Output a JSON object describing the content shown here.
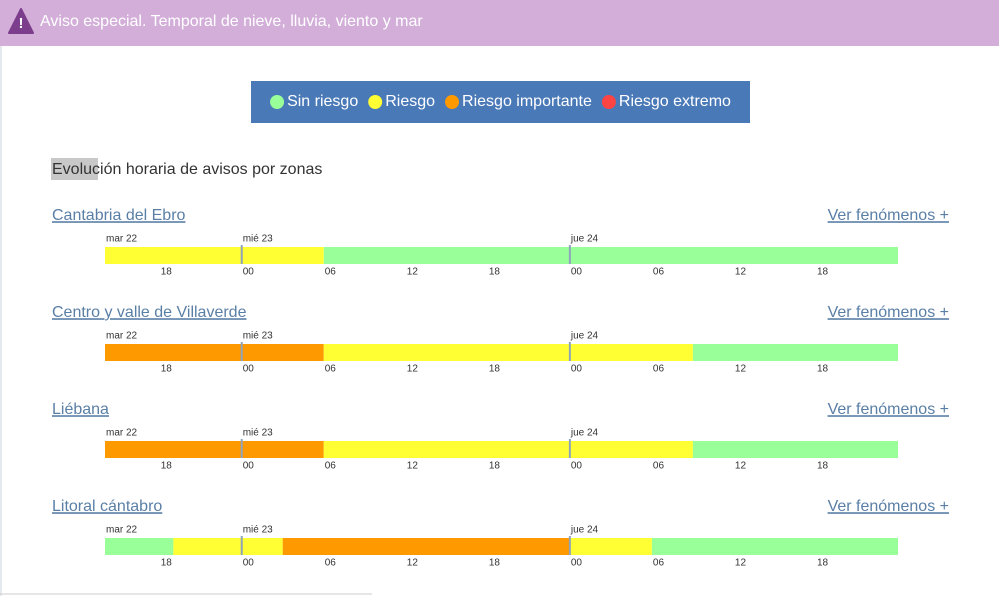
{
  "header": {
    "title": "Aviso especial. Temporal de nieve, lluvia, viento y mar"
  },
  "legend": [
    {
      "label": "Sin riesgo",
      "color": "#99ff99"
    },
    {
      "label": "Riesgo",
      "color": "#ffff33"
    },
    {
      "label": "Riesgo importante",
      "color": "#ff9900"
    },
    {
      "label": "Riesgo extremo",
      "color": "#ff4444"
    }
  ],
  "section_title": "Evolución horaria de avisos por zonas",
  "timeline": {
    "xlim": [
      14,
      72
    ],
    "days": [
      {
        "label": "mar 22",
        "value": 14
      },
      {
        "label": "mié 23",
        "value": 24
      },
      {
        "label": "jue 24",
        "value": 48
      }
    ],
    "ticks": [
      18,
      {
        "value": 24,
        "label": "00"
      },
      {
        "value": 30,
        "label": "06"
      },
      {
        "value": 36,
        "label": "12"
      },
      {
        "value": 42,
        "label": "18"
      },
      {
        "value": 48,
        "label": "00"
      },
      {
        "value": 54,
        "label": "06"
      },
      {
        "value": 60,
        "label": "12"
      },
      {
        "value": 66,
        "label": "18"
      }
    ]
  },
  "zones": [
    {
      "name": "Cantabria del Ebro",
      "link": "Ver fenómenos +",
      "segments": [
        {
          "start": 14,
          "end": 30,
          "color": "#ffff33"
        },
        {
          "start": 30,
          "end": 72,
          "color": "#99ff99"
        }
      ]
    },
    {
      "name": "Centro y valle de Villaverde",
      "link": "Ver fenómenos +",
      "segments": [
        {
          "start": 14,
          "end": 30,
          "color": "#ff9900"
        },
        {
          "start": 30,
          "end": 57,
          "color": "#ffff33"
        },
        {
          "start": 57,
          "end": 72,
          "color": "#99ff99"
        }
      ]
    },
    {
      "name": "Liébana",
      "link": "Ver fenómenos +",
      "segments": [
        {
          "start": 14,
          "end": 30,
          "color": "#ff9900"
        },
        {
          "start": 30,
          "end": 57,
          "color": "#ffff33"
        },
        {
          "start": 57,
          "end": 72,
          "color": "#99ff99"
        }
      ]
    },
    {
      "name": "Litoral cántabro",
      "link": "Ver fenómenos +",
      "segments": [
        {
          "start": 14,
          "end": 19,
          "color": "#99ff99"
        },
        {
          "start": 19,
          "end": 27,
          "color": "#ffff33"
        },
        {
          "start": 27,
          "end": 48,
          "color": "#ff9900"
        },
        {
          "start": 48,
          "end": 54,
          "color": "#ffff33"
        },
        {
          "start": 54,
          "end": 72,
          "color": "#99ff99"
        }
      ]
    }
  ]
}
